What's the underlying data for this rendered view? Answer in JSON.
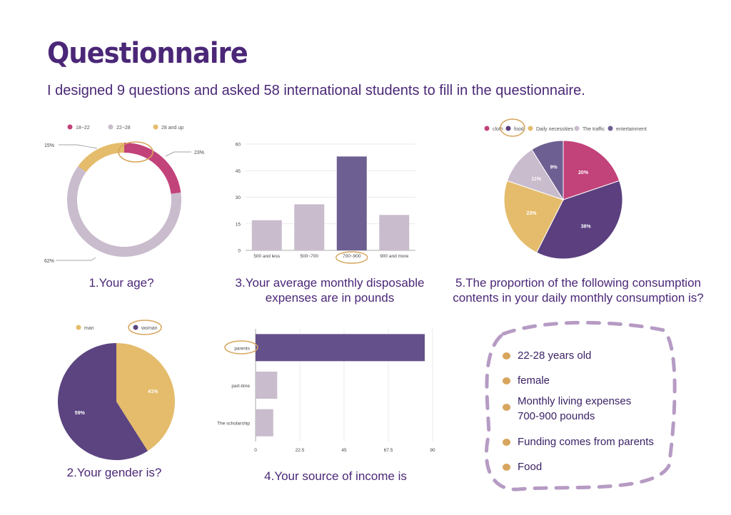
{
  "header": {
    "title": "Questionnaire",
    "subtitle": "I designed 9 questions and asked 58 international students to fill in the questionnaire."
  },
  "captions": {
    "age": "1.Your age?",
    "expenses": "3.Your average monthly disposable expenses are in pounds",
    "consumption": "5.The proportion of the following consumption contents in your daily monthly consumption is?",
    "gender": "2.Your gender is?",
    "income": "4.Your source of income is"
  },
  "chart_data": [
    {
      "id": "age",
      "type": "pie",
      "donut": true,
      "legend_position": "top",
      "categories": [
        "18~22",
        "22~28",
        "28 and up"
      ],
      "values": [
        23,
        62,
        15
      ],
      "labels": [
        "23%",
        "62%",
        "15%"
      ],
      "colors": [
        "#c2427a",
        "#c9bccd",
        "#e4bc6c"
      ],
      "highlight_color": "#d7a55d"
    },
    {
      "id": "expenses",
      "type": "bar",
      "categories": [
        "500 and less",
        "500~700",
        "700~900",
        "900 and more"
      ],
      "values": [
        17,
        26,
        53,
        20
      ],
      "ylim": [
        0,
        60
      ],
      "yticks": [
        "0",
        "15",
        "30",
        "45",
        "60"
      ],
      "grid": true,
      "colors": [
        "#c9bccd",
        "#c9bccd",
        "#6e5f92",
        "#c9bccd"
      ]
    },
    {
      "id": "consumption",
      "type": "pie",
      "legend_position": "top",
      "categories": [
        "cloth",
        "food",
        "Daily necessities",
        "The traffic",
        "entertainment"
      ],
      "legend_labels": [
        "cloth",
        "food",
        "Daily necessities",
        "The traffic",
        "entertainment"
      ],
      "values": [
        20,
        38,
        23,
        11,
        9
      ],
      "labels": [
        "20%",
        "38%",
        "23%",
        "11%",
        "9%"
      ],
      "colors": [
        "#c2427a",
        "#5b3f7f",
        "#e4bc6c",
        "#c9bccd",
        "#6e5f92"
      ]
    },
    {
      "id": "gender",
      "type": "pie",
      "legend_position": "top",
      "categories": [
        "man",
        "woman"
      ],
      "values": [
        41,
        59
      ],
      "labels": [
        "41%",
        "59%"
      ],
      "colors": [
        "#e4bc6c",
        "#5b4480"
      ]
    },
    {
      "id": "income",
      "type": "bar",
      "orientation": "horizontal",
      "categories": [
        "parents",
        "part-time",
        "The scholarship"
      ],
      "values": [
        86,
        11,
        9
      ],
      "xlim": [
        0,
        90
      ],
      "xticks": [
        "0",
        "22.5",
        "45",
        "67.5",
        "90"
      ],
      "grid": true,
      "colors": [
        "#64508a",
        "#c9bccd",
        "#c9bccd"
      ]
    }
  ],
  "summary": {
    "items": [
      "22-28 years old",
      "female",
      "Monthly living expenses",
      "700-900 pounds",
      "Funding comes from parents",
      "Food"
    ],
    "border_color": "#b69bc4",
    "dot_color": "#d7a55d"
  }
}
